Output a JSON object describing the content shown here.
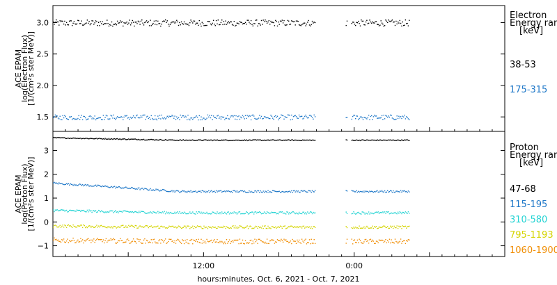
{
  "chart_data": [
    {
      "type": "scatter",
      "panel": "electron",
      "ylabel_lines": [
        "ACE EPAM",
        "log(Electron Flux)",
        "[1/(cm²s ster MeV)]"
      ],
      "yticks": [
        {
          "value": 1.5,
          "label": "1.5"
        },
        {
          "value": 2.0,
          "label": "2.0"
        },
        {
          "value": 2.5,
          "label": "2.5"
        },
        {
          "value": 3.0,
          "label": "3.0"
        }
      ],
      "ylim": [
        1.27,
        3.27
      ],
      "legend_title": [
        "Electron",
        "Energy ranges",
        "[keV]"
      ],
      "data_gaps_hours": [
        [
          20.9,
          23.3
        ],
        [
          23.45,
          23.75
        ]
      ],
      "x_end_hours": 28.4,
      "series": [
        {
          "name": "38-53",
          "color": "#000000",
          "mean": 3.0,
          "spread": 0.05
        },
        {
          "name": "175-315",
          "color": "#1f78c8",
          "mean": 1.5,
          "spread": 0.04
        }
      ]
    },
    {
      "type": "scatter",
      "panel": "proton",
      "ylabel_lines": [
        "ACE EPAM",
        "log(Proton Flux)",
        "[1/(cm²s ster MeV)]"
      ],
      "yticks": [
        {
          "value": -1,
          "label": "−1"
        },
        {
          "value": 0,
          "label": "0"
        },
        {
          "value": 1,
          "label": "1"
        },
        {
          "value": 2,
          "label": "2"
        },
        {
          "value": 3,
          "label": "3"
        }
      ],
      "ylim": [
        -1.45,
        3.8
      ],
      "legend_title": [
        "Proton",
        "Energy ranges",
        "[keV]"
      ],
      "data_gaps_hours": [
        [
          20.9,
          23.3
        ],
        [
          23.45,
          23.75
        ]
      ],
      "x_end_hours": 28.4,
      "series": [
        {
          "name": "47-68",
          "color": "#000000",
          "start": 3.55,
          "end": 3.45,
          "spread": 0.02
        },
        {
          "name": "115-195",
          "color": "#1f78c8",
          "start": 1.65,
          "end": 1.3,
          "spread": 0.04
        },
        {
          "name": "310-580",
          "color": "#22d3d3",
          "start": 0.5,
          "end": 0.4,
          "spread": 0.05
        },
        {
          "name": "795-1193",
          "color": "#d4d400",
          "start": -0.15,
          "end": -0.2,
          "spread": 0.06
        },
        {
          "name": "1060-1900",
          "color": "#f08c00",
          "start": -0.75,
          "end": -0.8,
          "spread": 0.1
        }
      ]
    }
  ],
  "xaxis": {
    "tick_labels": [
      {
        "hours": 12,
        "label": "12:00"
      },
      {
        "hours": 24,
        "label": "0:00"
      }
    ],
    "range_hours": [
      0,
      36
    ],
    "title": "hours:minutes, Oct.  6, 2021 - Oct.  7, 2021"
  }
}
